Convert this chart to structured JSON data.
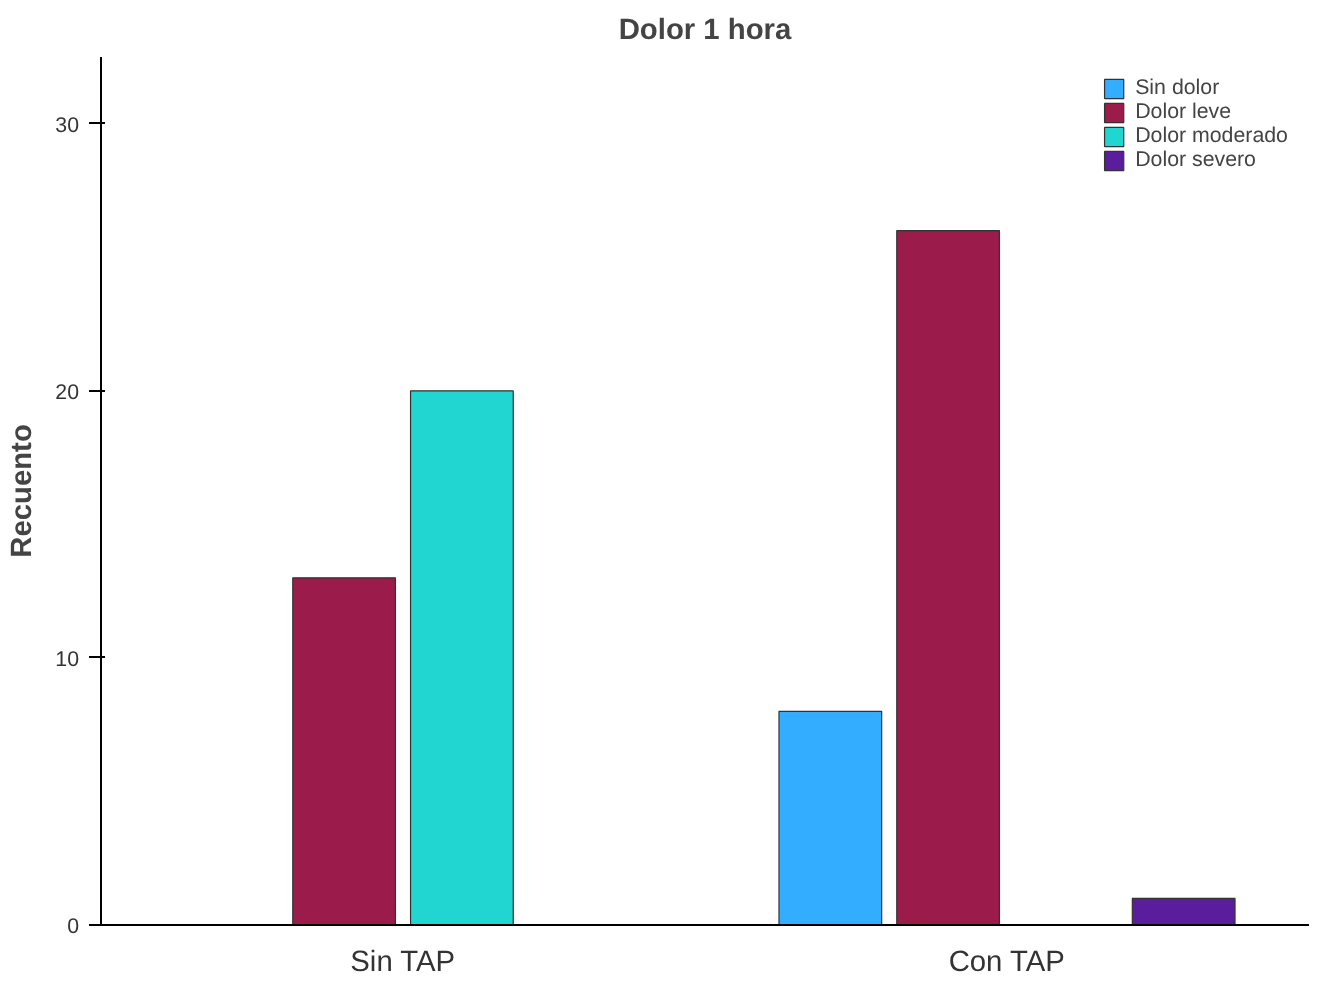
{
  "chart_data": {
    "type": "bar",
    "title": "Dolor 1 hora",
    "ylabel": "Recuento",
    "categories": [
      "Sin TAP",
      "Con TAP"
    ],
    "series": [
      {
        "name": "Sin dolor",
        "color": "#33adff",
        "values": [
          null,
          8
        ]
      },
      {
        "name": "Dolor leve",
        "color": "#9b1b4a",
        "values": [
          13,
          26
        ]
      },
      {
        "name": "Dolor moderado",
        "color": "#21d5d0",
        "values": [
          20,
          null
        ]
      },
      {
        "name": "Dolor severo",
        "color": "#5a1e9c",
        "values": [
          null,
          1
        ]
      }
    ],
    "ylim": [
      0,
      32.5
    ],
    "yticks": [
      0,
      10,
      20,
      30
    ],
    "grid": false,
    "legend": "top right"
  }
}
